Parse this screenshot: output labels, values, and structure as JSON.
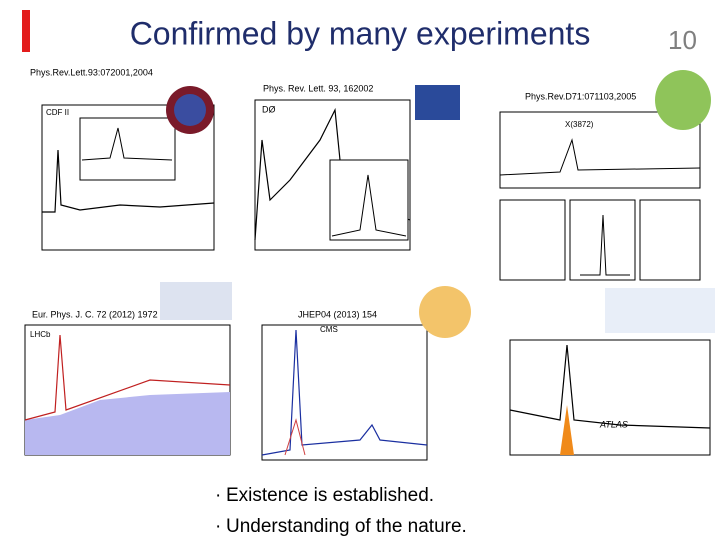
{
  "slide": {
    "title": "Confirmed by many experiments",
    "page_number": "10",
    "panels": [
      {
        "reference": "Phys.Rev.Lett.93:072001,2004",
        "label": "CDF II"
      },
      {
        "reference": "Phys. Rev. Lett. 93, 162002",
        "label": "DØ"
      },
      {
        "reference": "Phys.Rev.D71:071103,2005",
        "label": "X(3872)"
      },
      {
        "reference": "Eur. Phys. J. C. 72 (2012) 1972",
        "label": "LHCb"
      },
      {
        "reference": "JHEP04 (2013) 154",
        "label": "CMS"
      },
      {
        "reference": "",
        "label": "ATLAS"
      }
    ],
    "bullets": [
      "Existence is established.",
      "Understanding of the nature."
    ]
  }
}
